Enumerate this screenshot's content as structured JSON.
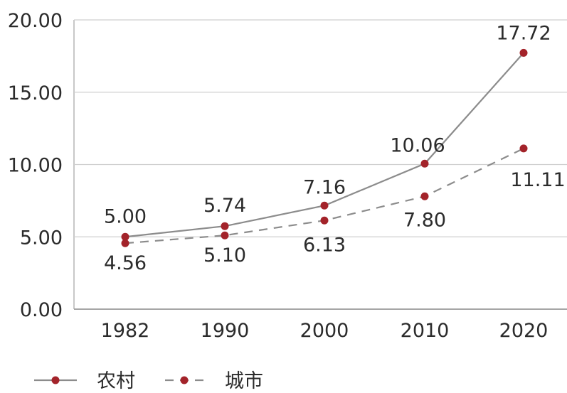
{
  "chart_data": {
    "type": "line",
    "title": "",
    "xlabel": "",
    "ylabel": "",
    "categories": [
      "1982",
      "1990",
      "2000",
      "2010",
      "2020"
    ],
    "ylim": [
      0,
      20
    ],
    "y_ticks": [
      "0.00",
      "5.00",
      "10.00",
      "15.00",
      "20.00"
    ],
    "grid": "horizontal",
    "legend_position": "bottom-left",
    "series": [
      {
        "name": "农村",
        "style": "solid",
        "values": [
          5.0,
          5.74,
          7.16,
          10.06,
          17.72
        ],
        "value_labels": [
          "5.00",
          "5.74",
          "7.16",
          "10.06",
          "17.72"
        ],
        "color": "#8c8c8c",
        "marker_color": "#a3232a"
      },
      {
        "name": "城市",
        "style": "dashed",
        "values": [
          4.56,
          5.1,
          6.13,
          7.8,
          11.11
        ],
        "value_labels": [
          "4.56",
          "5.10",
          "6.13",
          "7.80",
          "11.11"
        ],
        "color": "#8c8c8c",
        "marker_color": "#a3232a"
      }
    ]
  }
}
